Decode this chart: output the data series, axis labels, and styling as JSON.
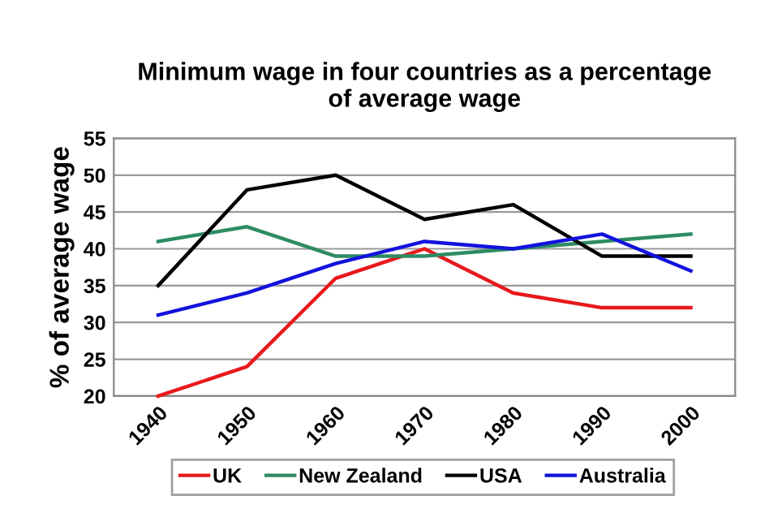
{
  "chart_data": {
    "type": "line",
    "title": "Minimum wage in four countries as a percentage\nof average wage",
    "ylabel": "% of average wage",
    "categories": [
      "1940",
      "1950",
      "1960",
      "1970",
      "1980",
      "1990",
      "2000"
    ],
    "series": [
      {
        "name": "UK",
        "color": "#e8191c",
        "values": [
          20,
          24,
          36,
          40,
          34,
          32,
          32
        ]
      },
      {
        "name": "New Zealand",
        "color": "#2e8b63",
        "values": [
          41,
          43,
          39,
          39,
          40,
          41,
          42
        ]
      },
      {
        "name": "USA",
        "color": "#000000",
        "values": [
          35,
          48,
          50,
          44,
          46,
          39,
          39
        ]
      },
      {
        "name": "Australia",
        "color": "#1212dd",
        "values": [
          31,
          34,
          38,
          41,
          40,
          42,
          37
        ]
      }
    ],
    "ylim": [
      20,
      55
    ],
    "yticks": [
      20,
      25,
      30,
      35,
      40,
      45,
      50,
      55
    ],
    "grid": "y",
    "legend": "bottom",
    "marker": "none",
    "line_style": "solid"
  }
}
